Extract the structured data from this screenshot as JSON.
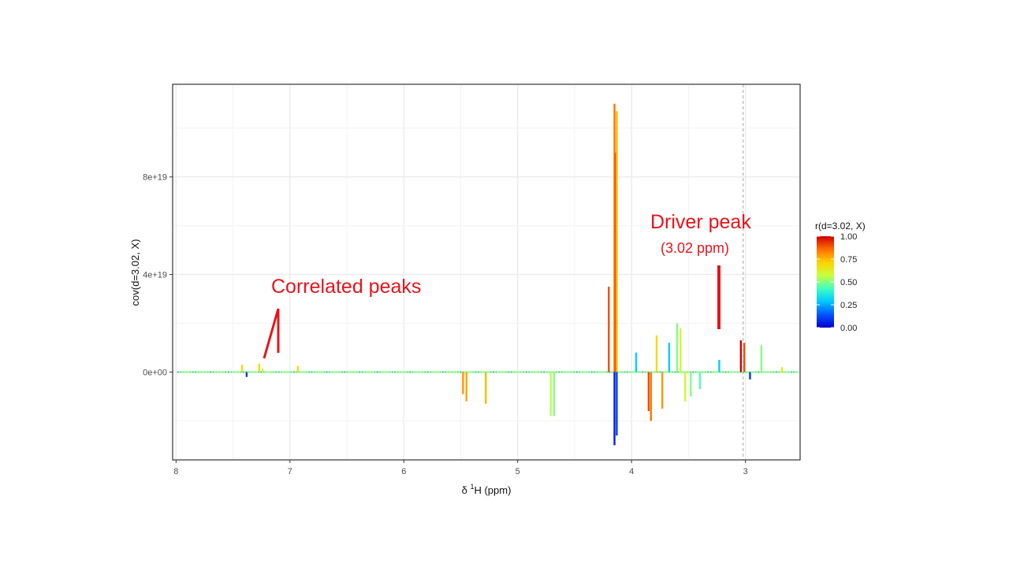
{
  "chart_data": {
    "type": "line",
    "xlabel": "δ ¹H (ppm)",
    "xlabel_parts": {
      "delta": "δ ",
      "sup": "1",
      "rest": "H (ppm)"
    },
    "ylabel": "cov(d=3.02, X)",
    "x_reversed": true,
    "xlim": [
      8.03,
      2.52
    ],
    "ylim": [
      -3.6e+19,
      1.18e+20
    ],
    "x_ticks": [
      8,
      7,
      6,
      5,
      4,
      3
    ],
    "x_tick_labels": [
      "8",
      "7",
      "6",
      "5",
      "4",
      "3"
    ],
    "y_ticks": [
      0,
      4e+19,
      8e+19
    ],
    "y_tick_labels": [
      "0e+00",
      "4e+19",
      "8e+19"
    ],
    "grid": true,
    "driver_line_x": 3.02,
    "colorbar": {
      "title": "r(d=3.02, X)",
      "range": [
        0,
        1
      ],
      "ticks": [
        1.0,
        0.75,
        0.5,
        0.25,
        0.0
      ],
      "tick_labels": [
        "1.00",
        "0.75",
        "0.50",
        "0.25",
        "0.00"
      ],
      "colors": [
        "#0000cc",
        "#0055ff",
        "#00c8ff",
        "#40ffc0",
        "#c8ff40",
        "#ffd200",
        "#ff6e00",
        "#cc0000"
      ],
      "placement": "right"
    },
    "series": [
      {
        "values": [
          {
            "x": 7.42,
            "y": 3e+18,
            "r": 0.7
          },
          {
            "x": 7.38,
            "y": -2e+18,
            "r": 0.1
          },
          {
            "x": 7.27,
            "y": 3.5e+18,
            "r": 0.7
          },
          {
            "x": 7.24,
            "y": 1.5e+18,
            "r": 0.6
          },
          {
            "x": 6.93,
            "y": 2.5e+18,
            "r": 0.7
          },
          {
            "x": 5.48,
            "y": -9e+18,
            "r": 0.8
          },
          {
            "x": 5.45,
            "y": -1.2e+19,
            "r": 0.78
          },
          {
            "x": 5.28,
            "y": -1.3e+19,
            "r": 0.75
          },
          {
            "x": 4.71,
            "y": -1.8e+19,
            "r": 0.55
          },
          {
            "x": 4.68,
            "y": -1.8e+19,
            "r": 0.5
          },
          {
            "x": 4.2,
            "y": 3.5e+19,
            "r": 0.9
          },
          {
            "x": 4.15,
            "y": 1.1e+20,
            "r": 0.85
          },
          {
            "x": 4.14,
            "y": 9e+19,
            "r": 0.9
          },
          {
            "x": 4.13,
            "y": 1.07e+20,
            "r": 0.75
          },
          {
            "x": 4.15,
            "y": -3e+19,
            "r": 0.05
          },
          {
            "x": 4.13,
            "y": -2.6e+19,
            "r": 0.1
          },
          {
            "x": 3.96,
            "y": 8e+18,
            "r": 0.3
          },
          {
            "x": 3.85,
            "y": -1.6e+19,
            "r": 0.9
          },
          {
            "x": 3.83,
            "y": -2e+19,
            "r": 0.85
          },
          {
            "x": 3.78,
            "y": 1.5e+19,
            "r": 0.7
          },
          {
            "x": 3.73,
            "y": -1.5e+19,
            "r": 0.8
          },
          {
            "x": 3.67,
            "y": 1.2e+19,
            "r": 0.3
          },
          {
            "x": 3.6,
            "y": 2e+19,
            "r": 0.5
          },
          {
            "x": 3.57,
            "y": 1.8e+19,
            "r": 0.6
          },
          {
            "x": 3.53,
            "y": -1.2e+19,
            "r": 0.6
          },
          {
            "x": 3.48,
            "y": -1e+19,
            "r": 0.5
          },
          {
            "x": 3.4,
            "y": -7e+18,
            "r": 0.45
          },
          {
            "x": 3.23,
            "y": 5e+18,
            "r": 0.3
          },
          {
            "x": 3.04,
            "y": 1.3e+19,
            "r": 1.0
          },
          {
            "x": 3.01,
            "y": 1.2e+19,
            "r": 0.9
          },
          {
            "x": 2.96,
            "y": -3e+18,
            "r": 0.1
          },
          {
            "x": 2.86,
            "y": 1.1e+19,
            "r": 0.5
          },
          {
            "x": 2.68,
            "y": 2e+18,
            "r": 0.65
          }
        ]
      }
    ]
  },
  "annotations": {
    "correlated": "Correlated peaks",
    "driver": "Driver peak",
    "driver_sub": "(3.02 ppm)",
    "color": "#e8131b"
  }
}
